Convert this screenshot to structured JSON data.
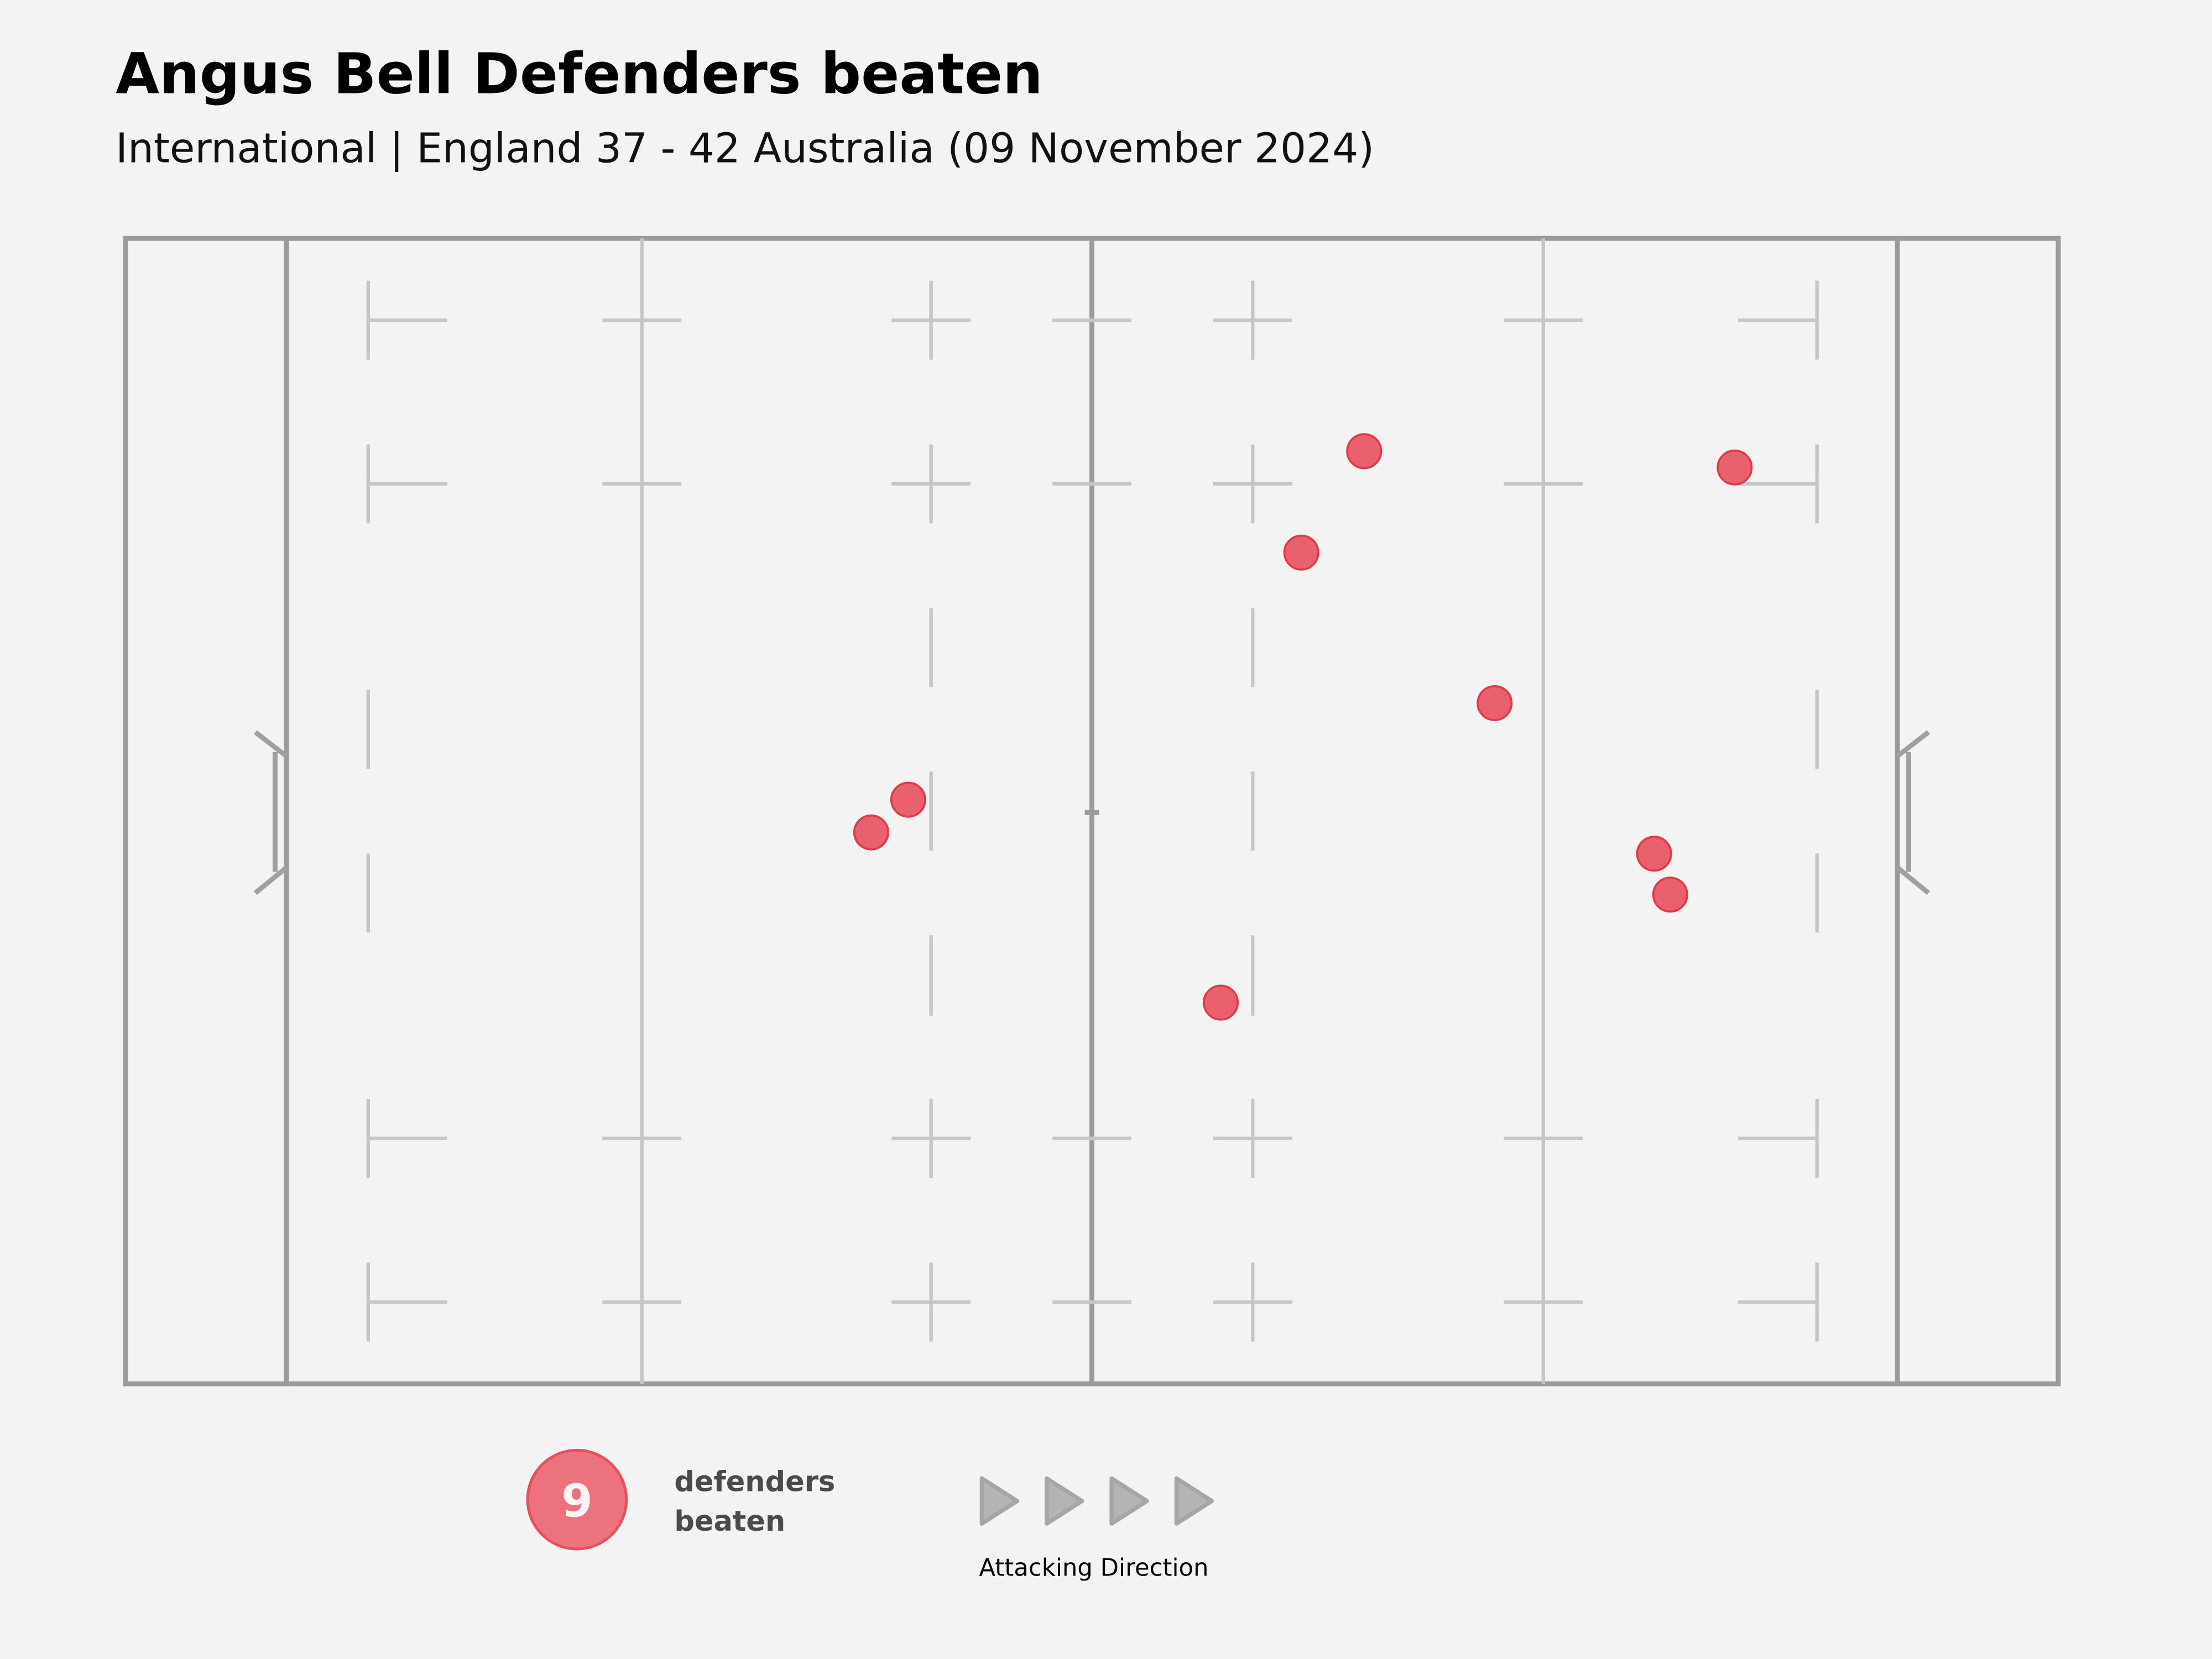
{
  "header": {
    "title": "Angus Bell Defenders beaten",
    "subtitle": "International | England 37 - 42 Australia (09 November 2024)"
  },
  "legend": {
    "count": "9",
    "label_line1": "defenders",
    "label_line2": "beaten",
    "direction_label": "Attacking Direction",
    "arrow_count": 4
  },
  "colors": {
    "point": "#e8505f",
    "badge": "#ec727d",
    "pitch_line": "#9b9b9b",
    "arrow": "#b4b4b4"
  },
  "chart_data": {
    "type": "scatter",
    "title": "Angus Bell Defenders beaten",
    "x_units": "metres from own try line (attacking left to right)",
    "y_units": "metres from top touchline",
    "xlim": [
      0,
      100
    ],
    "ylim": [
      0,
      70
    ],
    "points": [
      {
        "x": 36.3,
        "y": 36.3
      },
      {
        "x": 38.6,
        "y": 34.3
      },
      {
        "x": 58.0,
        "y": 46.7
      },
      {
        "x": 63.0,
        "y": 19.2
      },
      {
        "x": 66.9,
        "y": 13.0
      },
      {
        "x": 75.0,
        "y": 28.4
      },
      {
        "x": 84.9,
        "y": 37.6
      },
      {
        "x": 85.9,
        "y": 40.1
      },
      {
        "x": 89.9,
        "y": 14.0
      }
    ]
  }
}
